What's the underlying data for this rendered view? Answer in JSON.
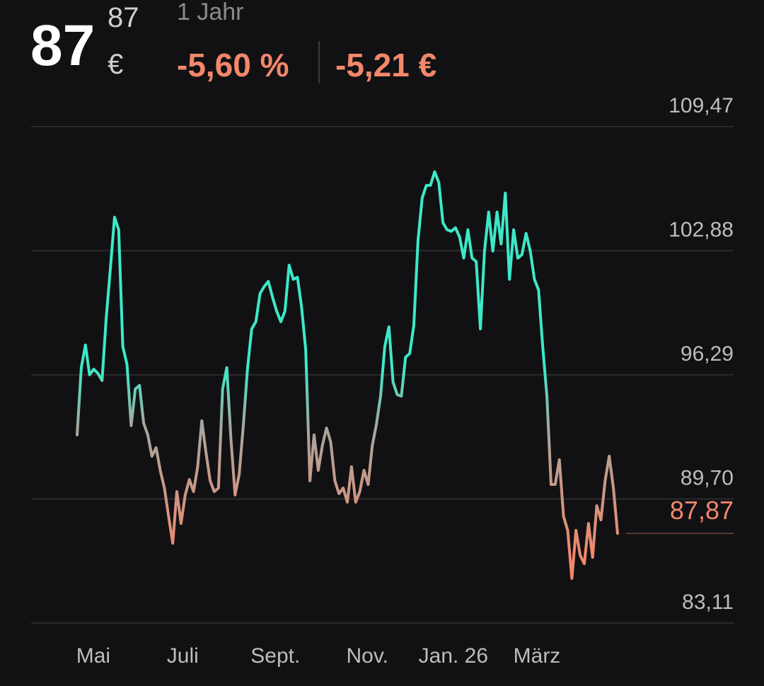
{
  "header": {
    "price_int": "87",
    "price_dec": "87",
    "currency": "€",
    "period": "1 Jahr",
    "change_pct": "-5,60 %",
    "change_abs": "-5,21 €"
  },
  "chart_data": {
    "type": "line",
    "values": [
      93.1,
      96.67,
      97.87,
      96.29,
      96.59,
      96.37,
      95.99,
      99.29,
      101.92,
      104.66,
      103.99,
      97.79,
      96.85,
      93.59,
      95.54,
      95.73,
      93.74,
      93.1,
      91.97,
      92.42,
      91.22,
      90.28,
      88.78,
      87.35,
      90.09,
      88.4,
      89.91,
      90.73,
      90.09,
      91.41,
      93.85,
      92.16,
      90.66,
      90.09,
      90.28,
      95.54,
      96.67,
      92.91,
      89.91,
      91.03,
      93.66,
      96.67,
      98.73,
      99.11,
      100.61,
      100.98,
      101.25,
      100.42,
      99.67,
      99.11,
      99.67,
      102.11,
      101.36,
      101.47,
      99.86,
      97.6,
      90.66,
      93.1,
      91.22,
      92.54,
      93.47,
      92.72,
      90.66,
      89.98,
      90.28,
      89.53,
      91.41,
      89.53,
      90.09,
      91.22,
      90.47,
      92.54,
      93.66,
      95.16,
      97.79,
      98.84,
      95.91,
      95.24,
      95.16,
      97.23,
      97.42,
      98.92,
      103.42,
      105.68,
      106.35,
      106.35,
      107.07,
      106.5,
      104.36,
      103.99,
      103.91,
      104.1,
      103.61,
      102.49,
      103.99,
      102.49,
      102.3,
      98.73,
      102.86,
      104.93,
      102.86,
      104.93,
      103.24,
      105.94,
      101.36,
      103.99,
      102.49,
      102.67,
      103.8,
      102.86,
      101.36,
      100.8,
      97.79,
      95.16,
      90.47,
      90.47,
      91.78,
      88.78,
      88.03,
      85.48,
      88.03,
      86.71,
      86.26,
      88.4,
      86.6,
      89.34,
      88.59,
      90.66,
      91.97,
      90.28,
      87.87
    ],
    "color_high": "#3de8c8",
    "color_low": "#f2876b",
    "ylim": [
      83.11,
      109.47
    ],
    "yticks": [
      {
        "value": 109.47,
        "label": "109,47"
      },
      {
        "value": 102.88,
        "label": "102,88"
      },
      {
        "value": 96.29,
        "label": "96,29"
      },
      {
        "value": 89.7,
        "label": "89,70"
      },
      {
        "value": 83.11,
        "label": "83,11"
      }
    ],
    "xticks": [
      {
        "value": 3.9,
        "label": "Mai"
      },
      {
        "value": 25.4,
        "label": "Juli"
      },
      {
        "value": 47.7,
        "label": "Sept."
      },
      {
        "value": 69.8,
        "label": "Nov."
      },
      {
        "value": 90.5,
        "label": "Jan. 26"
      },
      {
        "value": 110.6,
        "label": "März"
      }
    ],
    "current": {
      "value": 87.87,
      "label": "87,87"
    },
    "grid": true
  }
}
